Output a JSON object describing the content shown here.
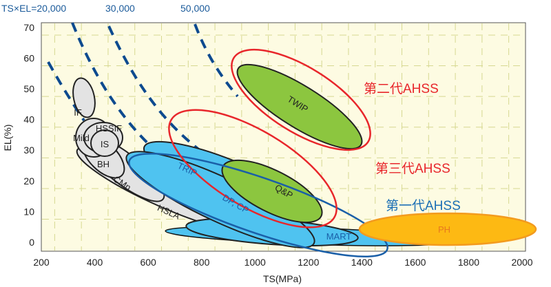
{
  "chart_data": {
    "type": "scatter",
    "title": "",
    "xlabel": "TS(MPa)",
    "ylabel": "EL(%)",
    "xlim": [
      200,
      2000
    ],
    "ylim": [
      0,
      70
    ],
    "x_ticks": [
      "200",
      "400",
      "600",
      "800",
      "1000",
      "1200",
      "1400",
      "1600",
      "1800",
      "2000"
    ],
    "y_ticks": [
      "0",
      "10",
      "20",
      "30",
      "40",
      "50",
      "60",
      "70"
    ],
    "grid": true,
    "iso_lines": [
      {
        "label": "TS×EL=20,000",
        "value": 20000
      },
      {
        "label": "30,000",
        "value": 30000
      },
      {
        "label": "50,000",
        "value": 50000
      }
    ],
    "regions": [
      {
        "name": "IF",
        "ts_range": [
          260,
          380
        ],
        "el_range": [
          38,
          55
        ]
      },
      {
        "name": "Mild",
        "ts_range": [
          250,
          430
        ],
        "el_range": [
          25,
          40
        ]
      },
      {
        "name": "HSSIF",
        "ts_range": [
          330,
          470
        ],
        "el_range": [
          28,
          38
        ]
      },
      {
        "name": "IS",
        "ts_range": [
          350,
          470
        ],
        "el_range": [
          26,
          36
        ]
      },
      {
        "name": "BH",
        "ts_range": [
          300,
          500
        ],
        "el_range": [
          22,
          35
        ]
      },
      {
        "name": "CMn",
        "ts_range": [
          300,
          700
        ],
        "el_range": [
          15,
          30
        ]
      },
      {
        "name": "HSLA",
        "ts_range": [
          350,
          1000
        ],
        "el_range": [
          5,
          25
        ]
      },
      {
        "name": "TRIP",
        "ts_range": [
          580,
          1150
        ],
        "el_range": [
          12,
          30
        ]
      },
      {
        "name": "DP, CP",
        "ts_range": [
          500,
          1200
        ],
        "el_range": [
          5,
          25
        ]
      },
      {
        "name": "MART",
        "ts_range": [
          800,
          1700
        ],
        "el_range": [
          1,
          10
        ]
      },
      {
        "name": "Q&P",
        "ts_range": [
          900,
          1300
        ],
        "el_range": [
          7,
          26
        ]
      },
      {
        "name": "TWIP",
        "ts_range": [
          900,
          1400
        ],
        "el_range": [
          28,
          57
        ]
      },
      {
        "name": "PH",
        "ts_range": [
          1350,
          2000
        ],
        "el_range": [
          3,
          10
        ]
      }
    ],
    "groups": [
      {
        "label": "第二代AHSS",
        "color": "#e8262b"
      },
      {
        "label": "第三代AHSS",
        "color": "#e8262b"
      },
      {
        "label": "第一代AHSS",
        "color": "#1b6fb5"
      }
    ]
  }
}
